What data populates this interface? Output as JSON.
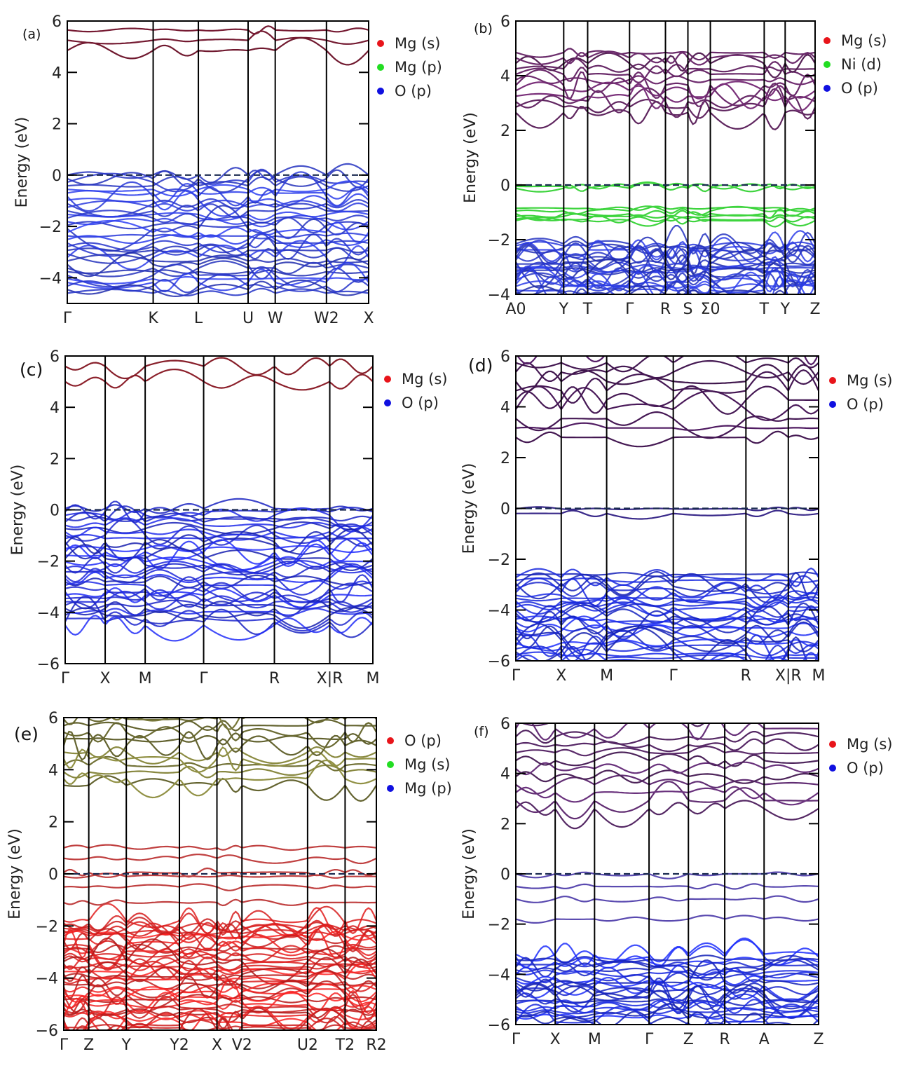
{
  "figure": {
    "description_free": true
  },
  "chart_data": [
    {
      "id": "a",
      "label": "(a)",
      "type": "line",
      "ylabel": "Energy (eV)",
      "ylim": [
        -5,
        6
      ],
      "yticks": [
        -4,
        -2,
        0,
        2,
        4,
        6
      ],
      "kpoints": [
        "Γ",
        "K",
        "L",
        "U",
        "W",
        "W2",
        "X"
      ],
      "kpos": [
        0,
        0.285,
        0.435,
        0.6,
        0.69,
        0.86,
        1.0
      ],
      "legend": [
        {
          "name": "Mg (s)",
          "color": "#e8141a"
        },
        {
          "name": "Mg (p)",
          "color": "#22dd22"
        },
        {
          "name": "O (p)",
          "color": "#1010e0"
        }
      ],
      "fermi_level": 0,
      "conduction": {
        "min": 4.55,
        "color": "#8a1f3a",
        "bands": 3,
        "spread": 0.8,
        "top": 6
      },
      "valence": {
        "top": 0,
        "bottom": -4.6,
        "color": "#2a3ae0",
        "bands": 34
      },
      "separate_bands": []
    },
    {
      "id": "b",
      "label": "(b)",
      "type": "line",
      "ylabel": "Energy (eV)",
      "ylim": [
        -4,
        6
      ],
      "yticks": [
        -4,
        -2,
        0,
        2,
        4,
        6
      ],
      "kpoints": [
        "A0",
        "Y",
        "T",
        "Γ",
        "R",
        "S",
        "Σ0",
        "T",
        "Y",
        "Z"
      ],
      "kpos": [
        0,
        0.16,
        0.24,
        0.38,
        0.5,
        0.575,
        0.65,
        0.83,
        0.9,
        1.0
      ],
      "legend": [
        {
          "name": "Mg (s)",
          "color": "#e8141a"
        },
        {
          "name": "Ni (d)",
          "color": "#22dd22"
        },
        {
          "name": "O (p)",
          "color": "#1010e0"
        }
      ],
      "fermi_level": 0,
      "conduction": {
        "min": 2.35,
        "color": "#6a2a6a",
        "bands": 12,
        "spread": 2.2,
        "top": 6
      },
      "valence": {
        "top": -2.15,
        "bottom": -4.0,
        "color": "#2a3ae0",
        "bands": 26
      },
      "separate_bands": [
        {
          "energies": [
            -0.05,
            -0.12,
            -0.85,
            -0.95,
            -1.05,
            -1.15,
            -1.25,
            -1.3
          ],
          "color": "#3ed43e"
        }
      ]
    },
    {
      "id": "c",
      "label": "(c)",
      "type": "line",
      "ylabel": "Energy (eV)",
      "ylim": [
        -6,
        6
      ],
      "yticks": [
        -6,
        -4,
        -2,
        0,
        2,
        4,
        6
      ],
      "kpoints": [
        "Γ",
        "X",
        "M",
        "Γ",
        "R",
        "X|R",
        "M"
      ],
      "kpos": [
        0,
        0.13,
        0.26,
        0.45,
        0.68,
        0.86,
        1.0
      ],
      "legend": [
        {
          "name": "Mg (s)",
          "color": "#e8141a"
        },
        {
          "name": "O (p)",
          "color": "#1010e0"
        }
      ],
      "fermi_level": 0,
      "conduction": {
        "min": 4.7,
        "color": "#8a1f2a",
        "bands": 2,
        "spread": 0.6,
        "top": 6
      },
      "valence": {
        "top": 0.05,
        "bottom": -4.5,
        "color": "#1f2ae6",
        "bands": 36
      },
      "separate_bands": []
    },
    {
      "id": "d",
      "label": "(d)",
      "type": "line",
      "ylabel": "Energy (eV)",
      "ylim": [
        -6,
        6
      ],
      "yticks": [
        -6,
        -4,
        -2,
        0,
        2,
        4,
        6
      ],
      "kpoints": [
        "Γ",
        "X",
        "M",
        "Γ",
        "R",
        "X|R",
        "M"
      ],
      "kpos": [
        0,
        0.15,
        0.3,
        0.52,
        0.76,
        0.9,
        1.0
      ],
      "legend": [
        {
          "name": "Mg (s)",
          "color": "#e8141a"
        },
        {
          "name": "O (p)",
          "color": "#1010e0"
        }
      ],
      "fermi_level": 0,
      "conduction": {
        "min": 2.5,
        "color": "#4a1a5a",
        "bands": 10,
        "spread": 3.3,
        "top": 6
      },
      "valence": {
        "top": -2.6,
        "bottom": -6.0,
        "color": "#1a2ae8",
        "bands": 30
      },
      "separate_bands": [
        {
          "energies": [
            -0.02,
            -0.2
          ],
          "color": "#3a2a8a"
        }
      ]
    },
    {
      "id": "e",
      "label": "(e)",
      "type": "line",
      "ylabel": "Energy (eV)",
      "ylim": [
        -6,
        6
      ],
      "yticks": [
        -6,
        -4,
        -2,
        0,
        2,
        4,
        6
      ],
      "kpoints": [
        "Γ",
        "Z",
        "Y",
        "Y2",
        "X",
        "V2",
        "U2",
        "T2",
        "R2"
      ],
      "kpos": [
        0,
        0.08,
        0.2,
        0.37,
        0.49,
        0.57,
        0.78,
        0.9,
        1.0
      ],
      "legend": [
        {
          "name": "O (p)",
          "color": "#e8141a"
        },
        {
          "name": "Mg (s)",
          "color": "#22dd22"
        },
        {
          "name": "Mg (p)",
          "color": "#1010e0"
        }
      ],
      "fermi_level": 0,
      "conduction": {
        "min": 3.1,
        "color": "#7a7a3a",
        "bands": 12,
        "spread": 2.8,
        "top": 6
      },
      "valence": {
        "top": -1.8,
        "bottom": -6.0,
        "color": "#e82020",
        "bands": 44
      },
      "separate_bands": [
        {
          "energies": [
            1.0,
            0.6,
            0.05,
            -0.1,
            -0.5,
            -1.1
          ],
          "color": "#c04040"
        }
      ]
    },
    {
      "id": "f",
      "label": "(f)",
      "type": "line",
      "ylabel": "Energy (eV)",
      "ylim": [
        -6,
        6
      ],
      "yticks": [
        -6,
        -4,
        -2,
        0,
        2,
        4,
        6
      ],
      "kpoints": [
        "Γ",
        "X",
        "M",
        "Γ",
        "Z",
        "R",
        "A",
        "Z"
      ],
      "kpos": [
        0,
        0.13,
        0.26,
        0.44,
        0.57,
        0.69,
        0.82,
        1.0
      ],
      "legend": [
        {
          "name": "Mg (s)",
          "color": "#e8141a"
        },
        {
          "name": "O (p)",
          "color": "#1010e0"
        }
      ],
      "fermi_level": 0,
      "conduction": {
        "min": 2.3,
        "color": "#5a2a6a",
        "bands": 12,
        "spread": 3.5,
        "top": 6
      },
      "valence": {
        "top": -3.2,
        "bottom": -6.0,
        "color": "#1a2ae8",
        "bands": 28
      },
      "separate_bands": [
        {
          "energies": [
            0.0,
            -0.5,
            -1.0,
            -1.8
          ],
          "color": "#5a4ab0"
        }
      ]
    }
  ]
}
